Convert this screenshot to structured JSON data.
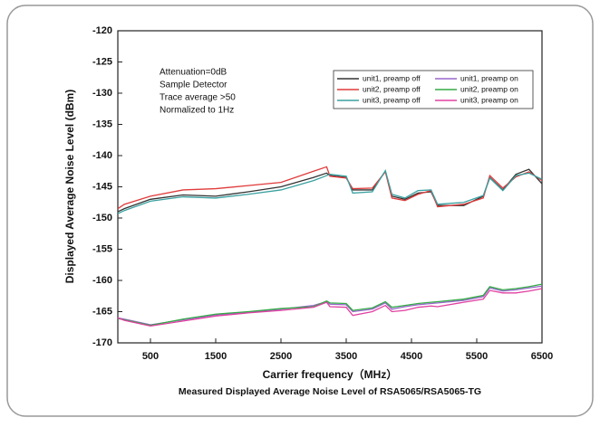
{
  "chart_data": {
    "type": "line",
    "caption": "Measured Displayed Average Noise Level of RSA5065/RSA5065-TG",
    "xlabel": "Carrier frequency（MHz）",
    "ylabel": "Displayed Average Noise Level (dBm)",
    "annotations": [
      "Attenuation=0dB",
      "Sample Detector",
      "Trace average >50",
      "Normalized to 1Hz"
    ],
    "x": [
      0,
      100,
      500,
      1000,
      1500,
      2000,
      2500,
      3000,
      3200,
      3250,
      3500,
      3600,
      3900,
      4100,
      4200,
      4400,
      4600,
      4800,
      4900,
      5300,
      5600,
      5700,
      5900,
      6100,
      6300,
      6500
    ],
    "series": [
      {
        "name": "unit1, preamp off",
        "color": "#333333",
        "values": [
          -149,
          -148.5,
          -147,
          -146.3,
          -146.5,
          -145.8,
          -145,
          -143.5,
          -142.8,
          -143.2,
          -143.5,
          -145.5,
          -145.5,
          -142.5,
          -146.5,
          -147,
          -146,
          -145.8,
          -148,
          -148,
          -146.5,
          -143.5,
          -145.5,
          -143,
          -142.2,
          -144.5
        ]
      },
      {
        "name": "unit1, preamp on",
        "color": "#9966cc",
        "values": [
          -166,
          -166.2,
          -167.1,
          -166.3,
          -165.5,
          -165.1,
          -164.6,
          -164,
          -163.4,
          -163.8,
          -163.9,
          -165,
          -164.6,
          -163.6,
          -164.6,
          -164.2,
          -163.9,
          -163.7,
          -163.6,
          -163.2,
          -162.6,
          -161.2,
          -161.7,
          -161.5,
          -161.2,
          -160.9
        ]
      },
      {
        "name": "unit2, preamp off",
        "color": "#e03a3a",
        "values": [
          -148.5,
          -147.8,
          -146.5,
          -145.5,
          -145.3,
          -144.8,
          -144.3,
          -142.5,
          -141.8,
          -143.3,
          -143.6,
          -145.3,
          -145.2,
          -142.6,
          -146.8,
          -147.2,
          -146.2,
          -145.6,
          -148.2,
          -147.8,
          -146.8,
          -143.2,
          -145.2,
          -143.4,
          -142.6,
          -144
        ]
      },
      {
        "name": "unit2, preamp on",
        "color": "#33aa44",
        "values": [
          -166.1,
          -166.3,
          -167.2,
          -166.2,
          -165.4,
          -165,
          -164.5,
          -164.2,
          -163.3,
          -163.6,
          -163.7,
          -164.8,
          -164.4,
          -163.4,
          -164.3,
          -164,
          -163.7,
          -163.5,
          -163.4,
          -163,
          -162.4,
          -161,
          -161.5,
          -161.3,
          -161,
          -160.6
        ]
      },
      {
        "name": "unit3, preamp off",
        "color": "#3aa0a0",
        "values": [
          -149.3,
          -148.8,
          -147.3,
          -146.6,
          -146.8,
          -146.2,
          -145.5,
          -144,
          -143.2,
          -143,
          -143.3,
          -146,
          -145.8,
          -142.4,
          -146.2,
          -146.8,
          -145.6,
          -145.5,
          -147.8,
          -147.5,
          -146.4,
          -143.6,
          -145.6,
          -143.2,
          -142.8,
          -143.8
        ]
      },
      {
        "name": "unit3, preamp on",
        "color": "#e040a0",
        "values": [
          -166,
          -166.4,
          -167.3,
          -166.5,
          -165.7,
          -165.2,
          -164.8,
          -164.3,
          -163.5,
          -164.2,
          -164.3,
          -165.6,
          -165,
          -164,
          -165,
          -164.8,
          -164.3,
          -164.1,
          -164.2,
          -163.5,
          -163,
          -161.6,
          -162,
          -162,
          -161.7,
          -161.3
        ]
      }
    ],
    "xlim": [
      0,
      6500
    ],
    "xticks": [
      500,
      1500,
      2500,
      3500,
      4500,
      5500,
      6500
    ],
    "ylim": [
      -170,
      -120
    ],
    "yticks": [
      -170,
      -165,
      -160,
      -155,
      -150,
      -145,
      -140,
      -135,
      -130,
      -125,
      -120
    ],
    "legend": "upper right"
  }
}
